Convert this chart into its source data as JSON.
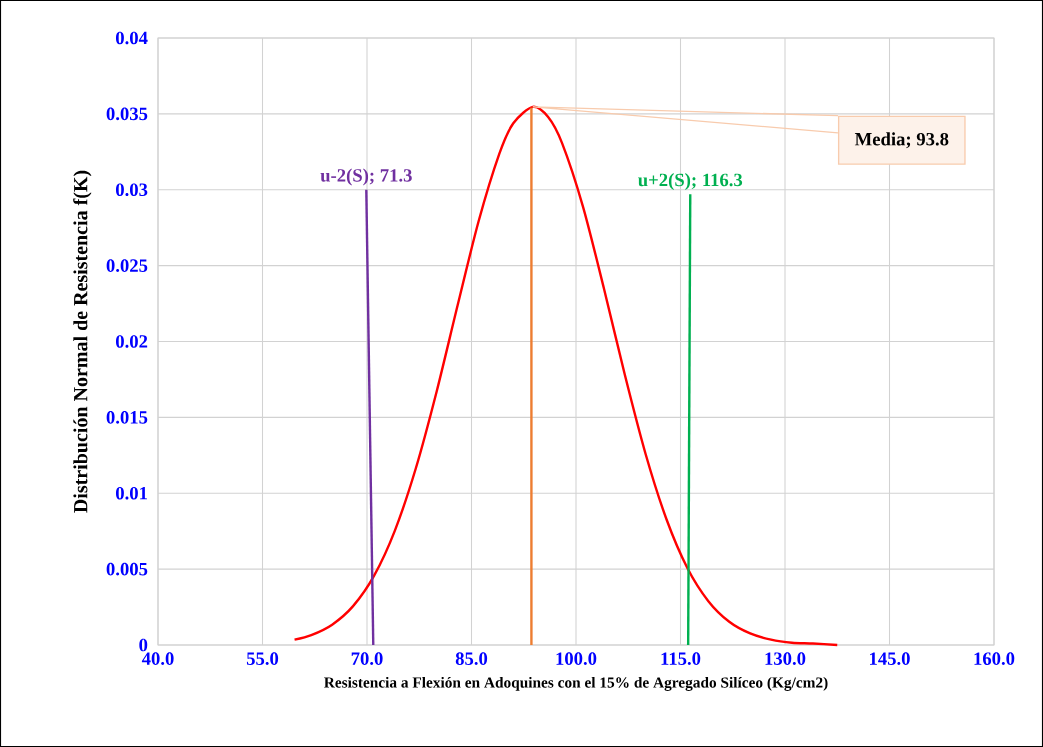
{
  "chart_data": {
    "type": "line",
    "xlabel": "Resistencia a Flexión en Adoquines con el 15% de Agregado Silíceo  (Kg/cm2)",
    "ylabel": "Distribución Normal de Resistencia f(K)",
    "xlim": [
      40,
      160
    ],
    "ylim": [
      0,
      0.04
    ],
    "xticks": [
      {
        "value": 40,
        "label": "40.0"
      },
      {
        "value": 55,
        "label": "55.0"
      },
      {
        "value": 70,
        "label": "70.0"
      },
      {
        "value": 85,
        "label": "85.0"
      },
      {
        "value": 100,
        "label": "100.0"
      },
      {
        "value": 115,
        "label": "115.0"
      },
      {
        "value": 130,
        "label": "130.0"
      },
      {
        "value": 145,
        "label": "145.0"
      },
      {
        "value": 160,
        "label": "160.0"
      }
    ],
    "yticks": [
      0,
      0.005,
      0.01,
      0.015,
      0.02,
      0.025,
      0.03,
      0.035,
      0.04
    ],
    "grid": true,
    "annotations": [
      "Media; 93.8"
    ],
    "series": [
      {
        "color": "#ff0000",
        "x": [
          59.6,
          62,
          65,
          68,
          71,
          74,
          77,
          80,
          83,
          86,
          89,
          91,
          93.8,
          96,
          98,
          101,
          104,
          107,
          110,
          113,
          116,
          119,
          122,
          125,
          128,
          131,
          134,
          137.5
        ],
        "values": [
          0.00035,
          0.00065,
          0.00134,
          0.00256,
          0.00455,
          0.00754,
          0.01163,
          0.01671,
          0.02237,
          0.02789,
          0.03238,
          0.03438,
          0.03546,
          0.03479,
          0.03307,
          0.02889,
          0.02351,
          0.01782,
          0.01257,
          0.00827,
          0.00506,
          0.00289,
          0.00153,
          0.00076,
          0.00035,
          0.00015,
          0.0001,
          0
        ]
      },
      {
        "name": "u-2(S); 71.3",
        "color": "#7030a0",
        "x": [
          69.9,
          70.9
        ],
        "values": [
          0.03,
          0
        ]
      },
      {
        "color": "#ed7d31",
        "x": [
          93.6,
          93.6
        ],
        "values": [
          0.0354,
          0
        ]
      },
      {
        "name": "u+2(S); 116.3",
        "color": "#00b050",
        "x": [
          116.4,
          116.1
        ],
        "values": [
          0.0297,
          0
        ]
      }
    ]
  }
}
